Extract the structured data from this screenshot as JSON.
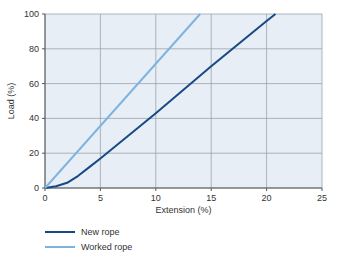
{
  "chart_data": {
    "type": "line",
    "x_label": "Extension (%)",
    "y_label": "Load (%)",
    "xlim": [
      0,
      25
    ],
    "xticks": [
      0,
      5,
      10,
      15,
      20,
      25
    ],
    "ylim": [
      0,
      100
    ],
    "yticks": [
      0,
      20,
      40,
      60,
      80,
      100
    ],
    "grid": true,
    "legend": "bottom",
    "series": [
      {
        "name": "New rope",
        "color": "#174a84",
        "x": [
          0,
          1,
          2,
          3,
          4,
          5,
          10,
          15,
          20,
          20.8
        ],
        "values": [
          0,
          1,
          3,
          7,
          12,
          17,
          43,
          70,
          96,
          100
        ]
      },
      {
        "name": "Worked rope",
        "color": "#7eb3de",
        "x": [
          0,
          14
        ],
        "values": [
          0,
          100
        ]
      }
    ]
  }
}
